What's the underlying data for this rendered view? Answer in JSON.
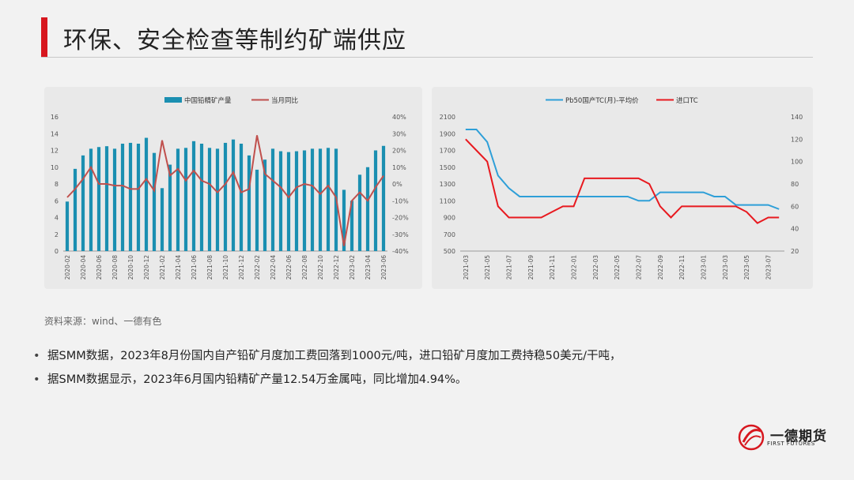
{
  "slide": {
    "title": "环保、安全检查等制约矿端供应",
    "source": "资料来源：wind、一德有色",
    "bullets": [
      "据SMM数据，2023年8月份国内自产铅矿月度加工费回落到1000元/吨，进口铅矿月度加工费持稳50美元/干吨，",
      "据SMM数据显示，2023年6月国内铅精矿产量12.54万金属吨，同比增加4.94%。"
    ],
    "bullet_symbol": "•",
    "logo": {
      "name": "一德期货",
      "sub": "FIRST FUTURES"
    }
  },
  "colors": {
    "accent": "#d7171f",
    "bar": "#1b8fb1",
    "line_red": "#c0504d",
    "line_blue": "#2e9fd8",
    "line_red2": "#e8191f"
  },
  "chart_data": [
    {
      "type": "bar",
      "legend": [
        "中国铅精矿产量",
        "当月同比"
      ],
      "categories": [
        "2020-02",
        "2020-03",
        "2020-04",
        "2020-05",
        "2020-06",
        "2020-07",
        "2020-08",
        "2020-09",
        "2020-10",
        "2020-11",
        "2020-12",
        "2021-01",
        "2021-02",
        "2021-03",
        "2021-04",
        "2021-05",
        "2021-06",
        "2021-07",
        "2021-08",
        "2021-09",
        "2021-10",
        "2021-11",
        "2021-12",
        "2022-01",
        "2022-02",
        "2022-03",
        "2022-04",
        "2022-05",
        "2022-06",
        "2022-07",
        "2022-08",
        "2022-09",
        "2022-10",
        "2022-11",
        "2022-12",
        "2023-01",
        "2023-02",
        "2023-03",
        "2023-04",
        "2023-05",
        "2023-06"
      ],
      "tick_labels": [
        "2020-02",
        "2020-04",
        "2020-06",
        "2020-08",
        "2020-10",
        "2020-12",
        "2021-02",
        "2021-04",
        "2021-06",
        "2021-08",
        "2021-10",
        "2021-12",
        "2022-02",
        "2022-04",
        "2022-06",
        "2022-08",
        "2022-10",
        "2022-12",
        "2023-02",
        "2023-04",
        "2023-06"
      ],
      "series": [
        {
          "name": "中国铅精矿产量",
          "type": "bar",
          "axis": "left",
          "values": [
            5.9,
            9.8,
            11.4,
            12.2,
            12.4,
            12.5,
            12.2,
            12.8,
            12.9,
            12.8,
            13.5,
            11.7,
            7.5,
            10.3,
            12.2,
            12.3,
            13.1,
            12.8,
            12.3,
            12.2,
            12.9,
            13.3,
            12.8,
            11.4,
            9.7,
            10.9,
            12.2,
            11.9,
            11.8,
            11.9,
            12.0,
            12.2,
            12.2,
            12.3,
            12.2,
            7.3,
            6.0,
            9.1,
            10.0,
            12.0,
            12.54
          ]
        },
        {
          "name": "当月同比",
          "type": "line",
          "axis": "right",
          "values": [
            -8,
            -3,
            3,
            10,
            0,
            0,
            -1,
            -1,
            -3,
            -3,
            3,
            -4,
            26,
            5,
            9,
            2,
            8,
            2,
            0,
            -5,
            0,
            7,
            -5,
            -3,
            29,
            6,
            2,
            -2,
            -8,
            -2,
            0,
            -1,
            -6,
            -1,
            -8,
            -37,
            -10,
            -5,
            -10,
            -2,
            4.94
          ]
        }
      ],
      "ylim_left": [
        0,
        16
      ],
      "yticks_left": [
        0,
        2,
        4,
        6,
        8,
        10,
        12,
        14,
        16
      ],
      "ylim_right": [
        -40,
        40
      ],
      "yticks_right": [
        "-40%",
        "-30%",
        "-20%",
        "-10%",
        "0%",
        "10%",
        "20%",
        "30%",
        "40%"
      ]
    },
    {
      "type": "line",
      "legend": [
        "Pb50国产TC(月)-平均价",
        "进口TC"
      ],
      "x": [
        "2021-03",
        "2021-04",
        "2021-05",
        "2021-06",
        "2021-07",
        "2021-08",
        "2021-09",
        "2021-10",
        "2021-11",
        "2021-12",
        "2022-01",
        "2022-02",
        "2022-03",
        "2022-04",
        "2022-05",
        "2022-06",
        "2022-07",
        "2022-08",
        "2022-09",
        "2022-10",
        "2022-11",
        "2022-12",
        "2023-01",
        "2023-02",
        "2023-03",
        "2023-04",
        "2023-05",
        "2023-06",
        "2023-07",
        "2023-08"
      ],
      "tick_labels": [
        "2021-03",
        "2021-05",
        "2021-07",
        "2021-09",
        "2021-11",
        "2022-01",
        "2022-03",
        "2022-05",
        "2022-07",
        "2022-09",
        "2022-11",
        "2023-01",
        "2023-03",
        "2023-05",
        "2023-07"
      ],
      "series": [
        {
          "name": "Pb50国产TC(月)-平均价",
          "axis": "left",
          "values": [
            1950,
            1950,
            1800,
            1400,
            1250,
            1150,
            1150,
            1150,
            1150,
            1150,
            1150,
            1150,
            1150,
            1150,
            1150,
            1150,
            1100,
            1100,
            1200,
            1200,
            1200,
            1200,
            1200,
            1150,
            1150,
            1050,
            1050,
            1050,
            1050,
            1000
          ]
        },
        {
          "name": "进口TC",
          "axis": "right",
          "values": [
            120,
            110,
            100,
            60,
            50,
            50,
            50,
            50,
            55,
            60,
            60,
            85,
            85,
            85,
            85,
            85,
            85,
            80,
            60,
            50,
            60,
            60,
            60,
            60,
            60,
            60,
            55,
            45,
            50,
            50
          ]
        }
      ],
      "ylim_left": [
        500,
        2100
      ],
      "yticks_left": [
        500,
        700,
        900,
        1100,
        1300,
        1500,
        1700,
        1900,
        2100
      ],
      "ylim_right": [
        20,
        140
      ],
      "yticks_right": [
        20,
        40,
        60,
        80,
        100,
        120,
        140
      ]
    }
  ]
}
